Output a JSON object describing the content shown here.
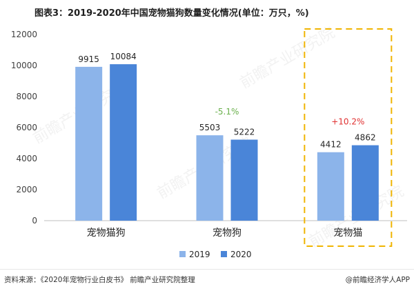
{
  "title": "图表3：2019-2020年中国宠物猫狗数量变化情况(单位：万只，%)",
  "chart_data": {
    "type": "bar",
    "categories": [
      "宠物猫狗",
      "宠物狗",
      "宠物猫"
    ],
    "series": [
      {
        "name": "2019",
        "values": [
          9915,
          5503,
          4412
        ],
        "color": "#8cb4ea"
      },
      {
        "name": "2020",
        "values": [
          10084,
          5222,
          4862
        ],
        "color": "#4a85d8"
      }
    ],
    "ylim": [
      0,
      12000
    ],
    "yticks": [
      0,
      2000,
      4000,
      6000,
      8000,
      10000,
      12000
    ],
    "grid": false,
    "legend_position": "bottom",
    "annotations": [
      {
        "category": "宠物狗",
        "text": "-5.1%",
        "color": "#6ab04c"
      },
      {
        "category": "宠物猫",
        "text": "+10.2%",
        "color": "#e03030"
      }
    ],
    "highlight": {
      "category": "宠物猫",
      "color": "#f0b400",
      "style": "dashed"
    }
  },
  "watermark": "前瞻产业研究院",
  "footer": {
    "source": "资料来源：《2020年宠物行业白皮书》 前瞻产业研究院整理",
    "brand": "@前瞻经济学人APP"
  }
}
